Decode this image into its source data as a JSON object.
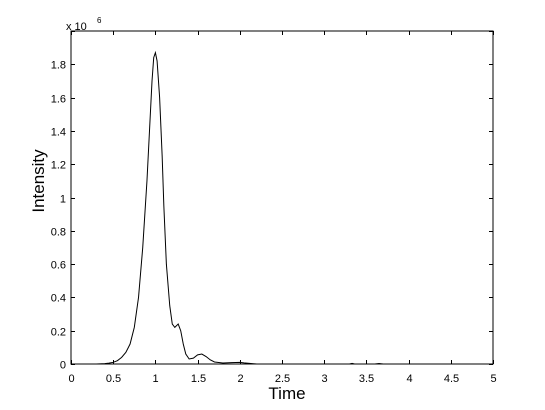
{
  "chart_data": {
    "type": "line",
    "title": "",
    "xlabel": "Time",
    "ylabel": "Intensity",
    "xlim": [
      0,
      5
    ],
    "ylim": [
      0,
      2
    ],
    "y_multiplier_base": "x 10",
    "y_multiplier_exponent": "6",
    "grid": false,
    "legend": "none",
    "x_ticks": [
      0,
      0.5,
      1,
      1.5,
      2,
      2.5,
      3,
      3.5,
      4,
      4.5,
      5
    ],
    "x_tick_labels": [
      "0",
      "0.5",
      "1",
      "1.5",
      "2",
      "2.5",
      "3",
      "3.5",
      "4",
      "4.5",
      "5"
    ],
    "y_ticks": [
      0,
      0.2,
      0.4,
      0.6,
      0.8,
      1,
      1.2,
      1.4,
      1.6,
      1.8,
      2
    ],
    "y_tick_labels": [
      "0",
      "0.2",
      "0.4",
      "0.6",
      "0.8",
      "1",
      "1.2",
      "1.4",
      "1.6",
      "1.8",
      "2"
    ],
    "line_color": "#000000",
    "series": [
      {
        "x": [
          0.0,
          0.3,
          0.4,
          0.45,
          0.5,
          0.55,
          0.6,
          0.65,
          0.7,
          0.75,
          0.8,
          0.85,
          0.9,
          0.93,
          0.96,
          0.98,
          1.0,
          1.02,
          1.05,
          1.08,
          1.1,
          1.13,
          1.17,
          1.2,
          1.23,
          1.27,
          1.3,
          1.33,
          1.36,
          1.4,
          1.45,
          1.5,
          1.55,
          1.6,
          1.65,
          1.7,
          1.8,
          1.9,
          2.0,
          2.05,
          2.2,
          2.5,
          3.0,
          3.3,
          3.33,
          3.36,
          3.6,
          3.65,
          3.7,
          4.0,
          4.8
        ],
        "y": [
          0.0,
          0.0,
          0.002,
          0.005,
          0.01,
          0.02,
          0.04,
          0.07,
          0.12,
          0.22,
          0.4,
          0.7,
          1.1,
          1.4,
          1.7,
          1.84,
          1.87,
          1.82,
          1.6,
          1.25,
          0.95,
          0.6,
          0.35,
          0.24,
          0.22,
          0.24,
          0.2,
          0.12,
          0.06,
          0.03,
          0.035,
          0.055,
          0.06,
          0.045,
          0.025,
          0.012,
          0.006,
          0.008,
          0.01,
          0.007,
          0.0,
          0.0,
          0.0,
          0.0,
          0.004,
          0.0,
          0.0,
          0.003,
          0.0,
          0.0,
          0.0
        ]
      }
    ]
  }
}
